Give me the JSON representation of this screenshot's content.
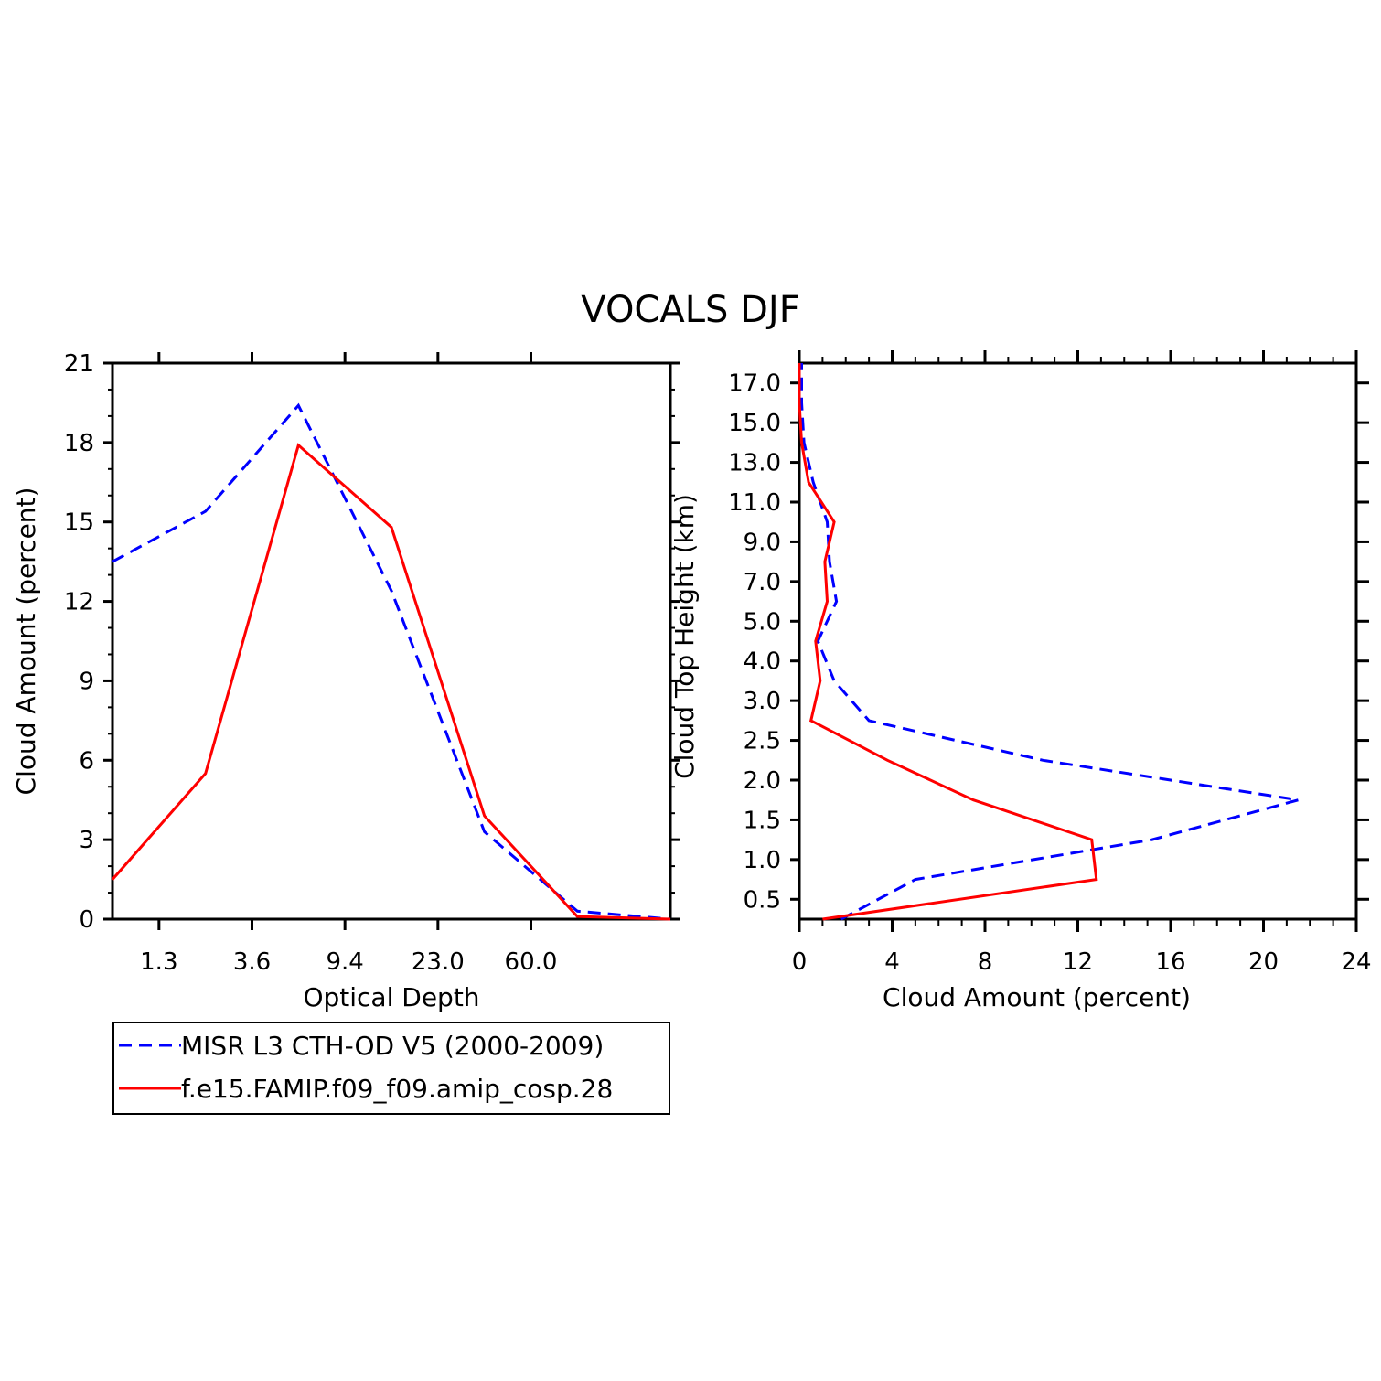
{
  "title": "VOCALS DJF",
  "legend": {
    "entries": [
      {
        "label": "MISR L3 CTH-OD V5 (2000-2009)",
        "color": "#0000ff",
        "dash": "dashed"
      },
      {
        "label": "f.e15.FAMIP.f09_f09.amip_cosp.28",
        "color": "#ff0000",
        "dash": "solid"
      }
    ]
  },
  "chart_data": [
    {
      "type": "line",
      "title": "",
      "xlabel": "Optical Depth",
      "ylabel": "Cloud Amount (percent)",
      "x": [
        1,
        2,
        3,
        4,
        5,
        6
      ],
      "xlim": [
        0.5,
        6.5
      ],
      "xticks": [
        1,
        2,
        3,
        4,
        5
      ],
      "xticklabels": [
        "1.3",
        "3.6",
        "9.4",
        "23.0",
        "60.0"
      ],
      "ylim": [
        0,
        21
      ],
      "yticks": [
        0,
        3,
        6,
        9,
        12,
        15,
        18,
        21
      ],
      "yticklabels": [
        "0",
        "3",
        "6",
        "9",
        "12",
        "15",
        "18",
        "21"
      ],
      "series": [
        {
          "name": "MISR L3 CTH-OD V5 (2000-2009)",
          "x": [
            0.5,
            1.5,
            2.5,
            3.5,
            4.5,
            5.5,
            6.5
          ],
          "values": [
            13.5,
            15.4,
            19.4,
            12.4,
            3.3,
            0.3,
            0
          ],
          "color": "#0000ff",
          "dash": "dashed"
        },
        {
          "name": "f.e15.FAMIP.f09_f09.amip_cosp.28",
          "x": [
            0.5,
            1.5,
            2.5,
            3.5,
            4.5,
            5.5,
            6.5
          ],
          "values": [
            1.5,
            5.5,
            17.9,
            14.8,
            3.9,
            0.1,
            0
          ],
          "color": "#ff0000",
          "dash": "solid"
        }
      ]
    },
    {
      "type": "line",
      "title": "",
      "xlabel": "Cloud Amount (percent)",
      "ylabel": "Cloud Top Height (km)",
      "xlim": [
        0,
        24
      ],
      "xticks": [
        0,
        4,
        8,
        12,
        16,
        20,
        24
      ],
      "xticklabels": [
        "0",
        "4",
        "8",
        "12",
        "16",
        "20",
        "24"
      ],
      "ylim": [
        0,
        14
      ],
      "yticks": [
        0.5,
        1.5,
        2.5,
        3.5,
        4.5,
        5.5,
        6.5,
        7.5,
        8.5,
        9.5,
        10.5,
        11.5,
        12.5,
        13.5
      ],
      "yticklabels": [
        "0.5",
        "1.0",
        "1.5",
        "2.0",
        "2.5",
        "3.0",
        "4.0",
        "5.0",
        "7.0",
        "9.0",
        "11.0",
        "13.0",
        "15.0",
        "17.0"
      ],
      "series": [
        {
          "name": "MISR L3 CTH-OD V5 (2000-2009)",
          "y": [
            0.0,
            1.0,
            2.0,
            3.0,
            4.0,
            5.0,
            6.0,
            7.0,
            8.0,
            9.0,
            10.0,
            11.0,
            12.0,
            13.0,
            14.0
          ],
          "values": [
            1.8,
            5.0,
            15.2,
            21.5,
            10.5,
            3.0,
            1.5,
            0.8,
            1.6,
            1.3,
            1.2,
            0.6,
            0.2,
            0.1,
            0.1
          ],
          "color": "#0000ff",
          "dash": "dashed"
        },
        {
          "name": "f.e15.FAMIP.f09_f09.amip_cosp.28",
          "y": [
            0.0,
            1.0,
            2.0,
            3.0,
            4.0,
            5.0,
            6.0,
            7.0,
            8.0,
            9.0,
            10.0,
            11.0,
            12.0,
            13.0,
            14.0
          ],
          "values": [
            1.0,
            12.8,
            12.6,
            7.5,
            3.8,
            0.5,
            0.9,
            0.7,
            1.2,
            1.1,
            1.5,
            0.4,
            0.1,
            0.0,
            0.0
          ],
          "color": "#ff0000",
          "dash": "solid"
        }
      ]
    }
  ]
}
